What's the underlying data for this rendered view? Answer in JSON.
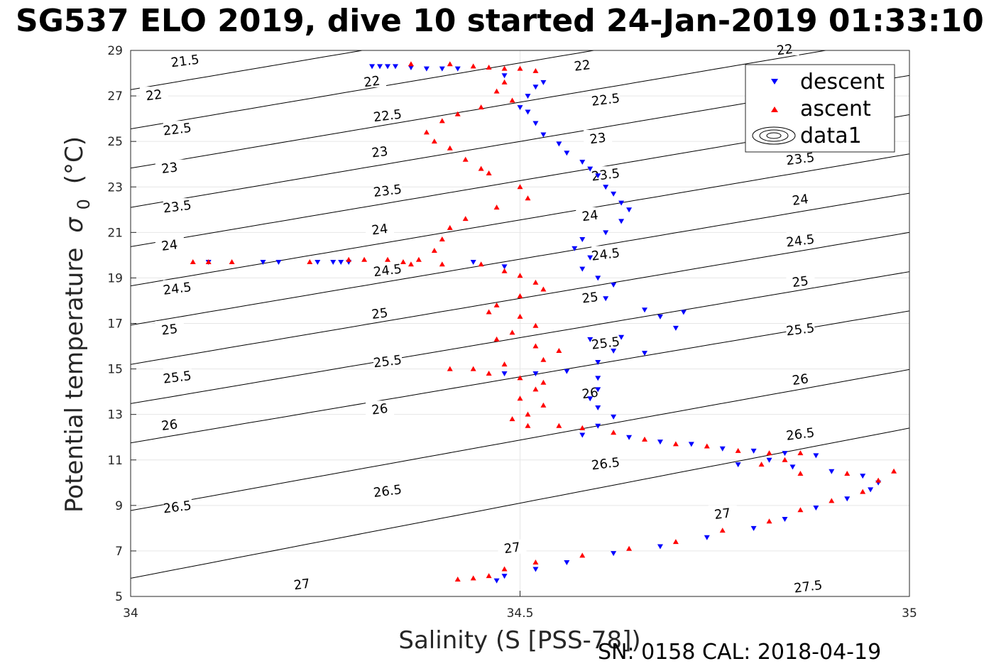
{
  "title": "SG537 ELO 2019, dive 10 started 24-Jan-2019 01:33:10",
  "footer": "SN: 0158  CAL: 2018-04-19",
  "colors": {
    "descent": "#0000ff",
    "ascent": "#ff0000",
    "contour": "#000000",
    "grid": "#e6e6e6"
  },
  "chart_data": {
    "type": "scatter",
    "xlabel": "Salinity (S [PSS-78])",
    "ylabel": "Potential temperature",
    "ylabel_symbol": "σ",
    "ylabel_sub": "0",
    "ylabel_unit": "(°C)",
    "xlim": [
      34,
      35
    ],
    "ylim": [
      5,
      29
    ],
    "xticks": [
      34,
      34.5,
      35
    ],
    "xtick_labels": [
      "34",
      "34.5",
      "35"
    ],
    "yticks": [
      5,
      7,
      9,
      11,
      13,
      15,
      17,
      19,
      21,
      23,
      25,
      27,
      29
    ],
    "ytick_labels": [
      "5",
      "7",
      "9",
      "11",
      "13",
      "15",
      "17",
      "19",
      "21",
      "23",
      "25",
      "27",
      "29"
    ],
    "grid": true,
    "legend_position": "top-right",
    "legend": [
      "descent",
      "ascent",
      "data1"
    ],
    "contours": {
      "levels": [
        21.5,
        22,
        22.5,
        23,
        23.5,
        24,
        24.5,
        25,
        25.5,
        26,
        26.5,
        27,
        27.5
      ],
      "labels": [
        {
          "text": "21.5",
          "x": 34.07,
          "y": 28.5
        },
        {
          "text": "22",
          "x": 34.03,
          "y": 27.0
        },
        {
          "text": "22",
          "x": 34.31,
          "y": 27.6
        },
        {
          "text": "22",
          "x": 34.58,
          "y": 28.3
        },
        {
          "text": "22",
          "x": 34.84,
          "y": 29.0
        },
        {
          "text": "22.5",
          "x": 34.06,
          "y": 25.5
        },
        {
          "text": "22.5",
          "x": 34.33,
          "y": 26.1
        },
        {
          "text": "22.5",
          "x": 34.61,
          "y": 26.8
        },
        {
          "text": "23",
          "x": 34.05,
          "y": 23.8
        },
        {
          "text": "23",
          "x": 34.32,
          "y": 24.5
        },
        {
          "text": "23",
          "x": 34.6,
          "y": 25.1
        },
        {
          "text": "23.5",
          "x": 34.06,
          "y": 22.1
        },
        {
          "text": "23.5",
          "x": 34.33,
          "y": 22.8
        },
        {
          "text": "23.5",
          "x": 34.61,
          "y": 23.5
        },
        {
          "text": "23.5",
          "x": 34.86,
          "y": 24.2
        },
        {
          "text": "24",
          "x": 34.05,
          "y": 20.4
        },
        {
          "text": "24",
          "x": 34.32,
          "y": 21.1
        },
        {
          "text": "24",
          "x": 34.59,
          "y": 21.7
        },
        {
          "text": "24",
          "x": 34.86,
          "y": 22.4
        },
        {
          "text": "24.5",
          "x": 34.06,
          "y": 18.5
        },
        {
          "text": "24.5",
          "x": 34.33,
          "y": 19.3
        },
        {
          "text": "24.5",
          "x": 34.61,
          "y": 20.0
        },
        {
          "text": "24.5",
          "x": 34.86,
          "y": 20.6
        },
        {
          "text": "25",
          "x": 34.05,
          "y": 16.7
        },
        {
          "text": "25",
          "x": 34.32,
          "y": 17.4
        },
        {
          "text": "25",
          "x": 34.59,
          "y": 18.1
        },
        {
          "text": "25",
          "x": 34.86,
          "y": 18.8
        },
        {
          "text": "25.5",
          "x": 34.06,
          "y": 14.6
        },
        {
          "text": "25.5",
          "x": 34.33,
          "y": 15.3
        },
        {
          "text": "25.5",
          "x": 34.61,
          "y": 16.1
        },
        {
          "text": "25.5",
          "x": 34.86,
          "y": 16.7
        },
        {
          "text": "26",
          "x": 34.05,
          "y": 12.5
        },
        {
          "text": "26",
          "x": 34.32,
          "y": 13.2
        },
        {
          "text": "26",
          "x": 34.59,
          "y": 13.9
        },
        {
          "text": "26",
          "x": 34.86,
          "y": 14.5
        },
        {
          "text": "26.5",
          "x": 34.06,
          "y": 8.9
        },
        {
          "text": "26.5",
          "x": 34.33,
          "y": 9.6
        },
        {
          "text": "26.5",
          "x": 34.61,
          "y": 10.8
        },
        {
          "text": "26.5",
          "x": 34.86,
          "y": 12.1
        },
        {
          "text": "27",
          "x": 34.22,
          "y": 5.5
        },
        {
          "text": "27",
          "x": 34.49,
          "y": 7.1
        },
        {
          "text": "27",
          "x": 34.76,
          "y": 8.6
        },
        {
          "text": "27.5",
          "x": 34.87,
          "y": 5.4
        }
      ]
    },
    "series": [
      {
        "name": "descent",
        "marker": "triangle-down",
        "points": [
          [
            34.31,
            28.3
          ],
          [
            34.32,
            28.3
          ],
          [
            34.33,
            28.3
          ],
          [
            34.34,
            28.3
          ],
          [
            34.36,
            28.25
          ],
          [
            34.38,
            28.2
          ],
          [
            34.4,
            28.2
          ],
          [
            34.42,
            28.2
          ],
          [
            34.48,
            27.9
          ],
          [
            34.52,
            27.4
          ],
          [
            34.53,
            27.6
          ],
          [
            34.51,
            27.0
          ],
          [
            34.5,
            26.5
          ],
          [
            34.51,
            26.3
          ],
          [
            34.52,
            25.8
          ],
          [
            34.53,
            25.3
          ],
          [
            34.55,
            24.9
          ],
          [
            34.56,
            24.5
          ],
          [
            34.58,
            24.1
          ],
          [
            34.59,
            23.8
          ],
          [
            34.6,
            23.5
          ],
          [
            34.61,
            23.0
          ],
          [
            34.62,
            22.7
          ],
          [
            34.63,
            22.3
          ],
          [
            34.64,
            22.0
          ],
          [
            34.63,
            21.5
          ],
          [
            34.61,
            21.0
          ],
          [
            34.58,
            20.7
          ],
          [
            34.57,
            20.3
          ],
          [
            34.59,
            19.9
          ],
          [
            34.58,
            19.4
          ],
          [
            34.6,
            19.0
          ],
          [
            34.62,
            18.7
          ],
          [
            34.61,
            18.1
          ],
          [
            34.66,
            17.6
          ],
          [
            34.68,
            17.3
          ],
          [
            34.71,
            17.5
          ],
          [
            34.7,
            16.8
          ],
          [
            34.63,
            16.4
          ],
          [
            34.59,
            16.3
          ],
          [
            34.62,
            15.8
          ],
          [
            34.66,
            15.7
          ],
          [
            34.6,
            15.3
          ],
          [
            34.56,
            14.9
          ],
          [
            34.52,
            14.8
          ],
          [
            34.48,
            14.8
          ],
          [
            34.6,
            14.6
          ],
          [
            34.6,
            14.1
          ],
          [
            34.59,
            13.7
          ],
          [
            34.6,
            13.3
          ],
          [
            34.62,
            12.9
          ],
          [
            34.6,
            12.5
          ],
          [
            34.58,
            12.1
          ],
          [
            34.64,
            12.0
          ],
          [
            34.68,
            11.8
          ],
          [
            34.72,
            11.7
          ],
          [
            34.76,
            11.5
          ],
          [
            34.8,
            11.4
          ],
          [
            34.84,
            11.3
          ],
          [
            34.88,
            11.2
          ],
          [
            34.82,
            11.0
          ],
          [
            34.78,
            10.8
          ],
          [
            34.85,
            10.7
          ],
          [
            34.9,
            10.5
          ],
          [
            34.94,
            10.3
          ],
          [
            34.96,
            10.0
          ],
          [
            34.95,
            9.7
          ],
          [
            34.92,
            9.3
          ],
          [
            34.88,
            8.9
          ],
          [
            34.84,
            8.4
          ],
          [
            34.8,
            8.0
          ],
          [
            34.74,
            7.6
          ],
          [
            34.68,
            7.2
          ],
          [
            34.62,
            6.9
          ],
          [
            34.56,
            6.5
          ],
          [
            34.52,
            6.2
          ],
          [
            34.48,
            5.9
          ],
          [
            34.47,
            5.7
          ],
          [
            34.1,
            19.7
          ],
          [
            34.17,
            19.7
          ],
          [
            34.19,
            19.7
          ],
          [
            34.24,
            19.7
          ],
          [
            34.26,
            19.7
          ],
          [
            34.27,
            19.7
          ],
          [
            34.28,
            19.7
          ],
          [
            34.44,
            19.7
          ],
          [
            34.48,
            19.5
          ]
        ]
      },
      {
        "name": "ascent",
        "marker": "triangle-up",
        "points": [
          [
            34.36,
            28.4
          ],
          [
            34.41,
            28.4
          ],
          [
            34.44,
            28.3
          ],
          [
            34.46,
            28.25
          ],
          [
            34.48,
            28.2
          ],
          [
            34.5,
            28.2
          ],
          [
            34.52,
            28.1
          ],
          [
            34.48,
            27.6
          ],
          [
            34.47,
            27.2
          ],
          [
            34.49,
            26.8
          ],
          [
            34.45,
            26.5
          ],
          [
            34.42,
            26.2
          ],
          [
            34.4,
            25.9
          ],
          [
            34.38,
            25.4
          ],
          [
            34.39,
            25.0
          ],
          [
            34.41,
            24.7
          ],
          [
            34.43,
            24.2
          ],
          [
            34.45,
            23.8
          ],
          [
            34.46,
            23.6
          ],
          [
            34.5,
            23.0
          ],
          [
            34.51,
            22.5
          ],
          [
            34.47,
            22.1
          ],
          [
            34.43,
            21.6
          ],
          [
            34.41,
            21.2
          ],
          [
            34.4,
            20.7
          ],
          [
            34.39,
            20.2
          ],
          [
            34.37,
            19.8
          ],
          [
            34.33,
            19.8
          ],
          [
            34.35,
            19.7
          ],
          [
            34.3,
            19.8
          ],
          [
            34.28,
            19.8
          ],
          [
            34.36,
            19.6
          ],
          [
            34.4,
            19.6
          ],
          [
            34.45,
            19.6
          ],
          [
            34.48,
            19.3
          ],
          [
            34.5,
            19.1
          ],
          [
            34.52,
            18.8
          ],
          [
            34.53,
            18.5
          ],
          [
            34.5,
            18.2
          ],
          [
            34.47,
            17.8
          ],
          [
            34.46,
            17.5
          ],
          [
            34.5,
            17.3
          ],
          [
            34.52,
            16.9
          ],
          [
            34.49,
            16.6
          ],
          [
            34.47,
            16.3
          ],
          [
            34.52,
            16.0
          ],
          [
            34.55,
            15.8
          ],
          [
            34.53,
            15.4
          ],
          [
            34.48,
            15.2
          ],
          [
            34.44,
            15.0
          ],
          [
            34.41,
            15.0
          ],
          [
            34.46,
            14.8
          ],
          [
            34.5,
            14.6
          ],
          [
            34.53,
            14.4
          ],
          [
            34.52,
            14.1
          ],
          [
            34.5,
            13.7
          ],
          [
            34.53,
            13.4
          ],
          [
            34.51,
            13.0
          ],
          [
            34.49,
            12.8
          ],
          [
            34.51,
            12.5
          ],
          [
            34.55,
            12.5
          ],
          [
            34.58,
            12.4
          ],
          [
            34.62,
            12.2
          ],
          [
            34.66,
            11.9
          ],
          [
            34.7,
            11.7
          ],
          [
            34.74,
            11.6
          ],
          [
            34.78,
            11.4
          ],
          [
            34.82,
            11.3
          ],
          [
            34.86,
            11.3
          ],
          [
            34.84,
            11.0
          ],
          [
            34.81,
            10.8
          ],
          [
            34.86,
            10.4
          ],
          [
            34.92,
            10.4
          ],
          [
            34.98,
            10.5
          ],
          [
            34.96,
            10.1
          ],
          [
            34.94,
            9.6
          ],
          [
            34.9,
            9.2
          ],
          [
            34.86,
            8.8
          ],
          [
            34.82,
            8.3
          ],
          [
            34.76,
            7.9
          ],
          [
            34.7,
            7.4
          ],
          [
            34.64,
            7.1
          ],
          [
            34.58,
            6.8
          ],
          [
            34.52,
            6.5
          ],
          [
            34.48,
            6.2
          ],
          [
            34.46,
            5.9
          ],
          [
            34.44,
            5.8
          ],
          [
            34.42,
            5.75
          ],
          [
            34.08,
            19.7
          ],
          [
            34.1,
            19.7
          ],
          [
            34.13,
            19.7
          ],
          [
            34.23,
            19.7
          ]
        ]
      }
    ]
  }
}
